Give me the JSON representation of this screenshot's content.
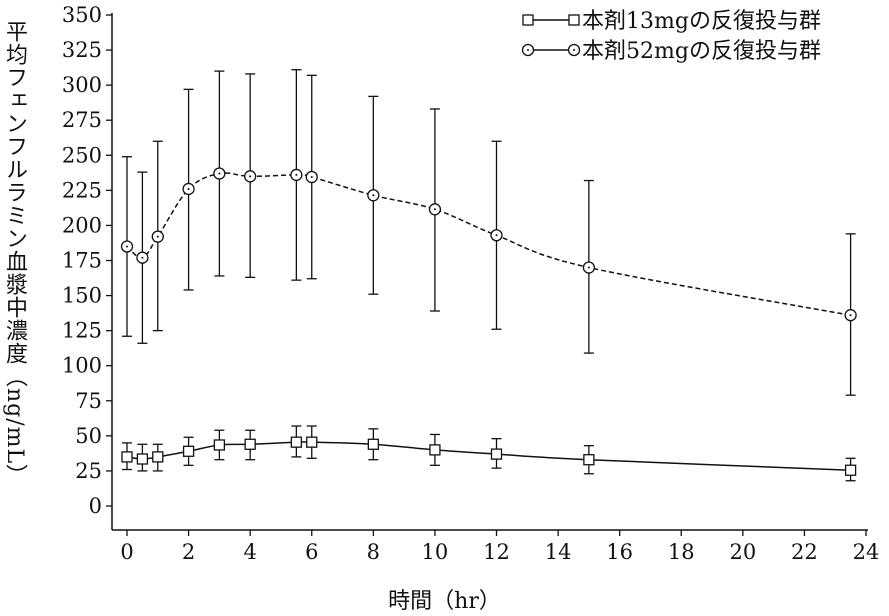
{
  "chart_data": {
    "type": "line",
    "title": "",
    "xlabel": "時間（hr）",
    "ylabel": "平均フェンフルラミン血漿中濃度（ng/mL）",
    "xlim": [
      0,
      24
    ],
    "ylim": [
      0,
      350
    ],
    "xticks": [
      0,
      2,
      4,
      6,
      8,
      10,
      12,
      14,
      16,
      18,
      20,
      22,
      24
    ],
    "yticks": [
      0,
      25,
      50,
      75,
      100,
      125,
      150,
      175,
      200,
      225,
      250,
      275,
      300,
      325,
      350
    ],
    "grid": false,
    "legend_position": "top-right",
    "series": [
      {
        "name": "本剤13mgの反復投与群",
        "marker": "square",
        "line": "solid",
        "x": [
          0,
          0.5,
          1,
          2,
          3,
          4,
          5.5,
          6,
          8,
          10,
          12,
          15,
          23.5
        ],
        "y": [
          35,
          33.5,
          35,
          39,
          43.5,
          44,
          45.5,
          45.5,
          44,
          40,
          37,
          33,
          25.5
        ],
        "err_upper": [
          45,
          44,
          44,
          49,
          54,
          54,
          57,
          57,
          55,
          51,
          48,
          43,
          34
        ],
        "err_lower": [
          26,
          25,
          25,
          29,
          33,
          33,
          35,
          34,
          33,
          29,
          27,
          23,
          18
        ]
      },
      {
        "name": "本剤52mgの反復投与群",
        "marker": "circle",
        "line": "dashed",
        "x": [
          0,
          0.5,
          1,
          2,
          3,
          4,
          5.5,
          6,
          8,
          10,
          12,
          15,
          23.5
        ],
        "y": [
          185,
          177,
          192,
          226,
          237,
          235,
          236,
          234.5,
          221.5,
          211.5,
          193,
          170,
          136
        ],
        "err_upper": [
          249,
          238,
          260,
          297,
          310,
          308,
          311,
          307,
          292,
          283,
          260,
          232,
          194
        ],
        "err_lower": [
          121,
          116,
          125,
          154,
          164,
          163,
          161,
          162,
          151,
          139,
          126,
          109,
          79
        ]
      }
    ]
  }
}
